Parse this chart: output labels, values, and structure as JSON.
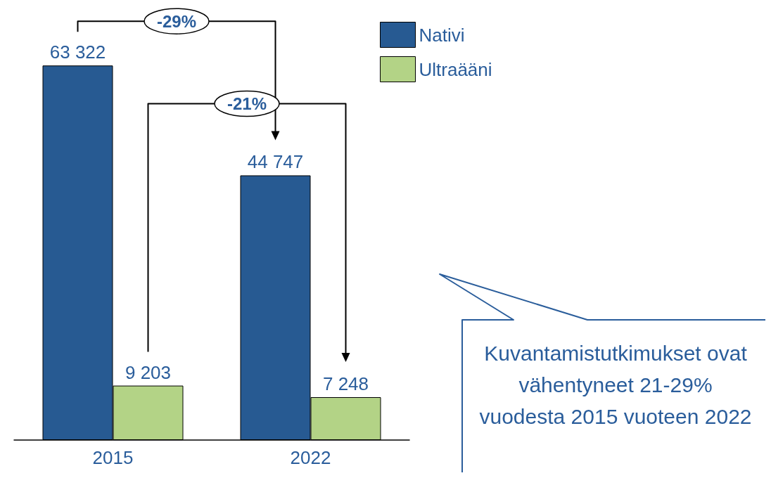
{
  "chart_data": {
    "type": "bar",
    "categories": [
      "2015",
      "2022"
    ],
    "series": [
      {
        "name": "Nativi",
        "color": "#275a92",
        "values": [
          63322,
          44747
        ],
        "value_labels": [
          "63 322",
          "44 747"
        ]
      },
      {
        "name": "Ultraääni",
        "color": "#b3d386",
        "values": [
          9203,
          7248
        ],
        "value_labels": [
          "9 203",
          "7 248"
        ]
      }
    ],
    "legend": "top right",
    "annotations": [
      "-29%",
      "-21%",
      "Kuvantamistutkimukset ovat vähentyneet 21-29% vuodesta 2015 vuoteen 2022"
    ]
  }
}
